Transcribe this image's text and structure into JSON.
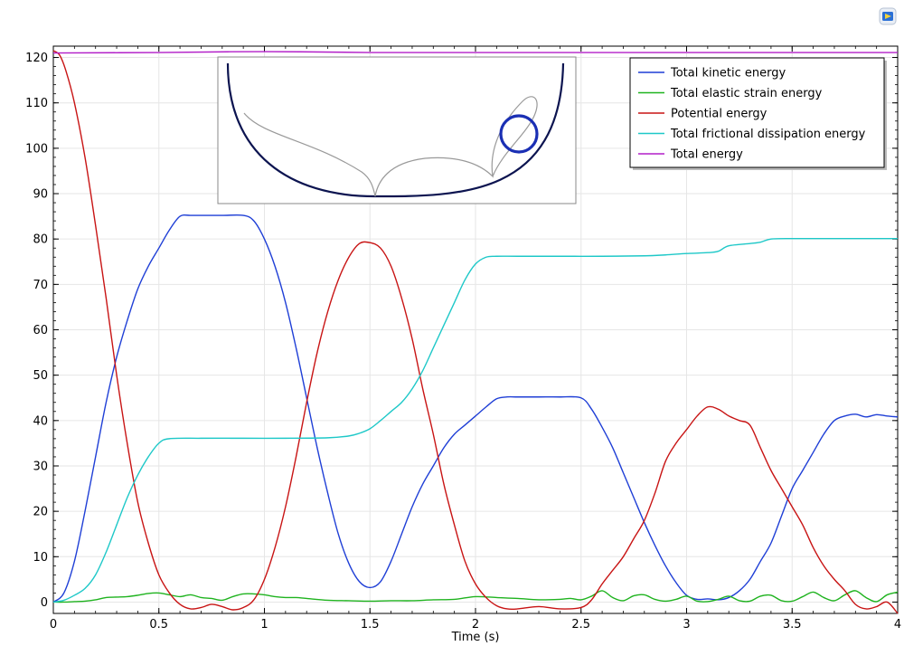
{
  "window": {
    "logo_icon": "comsol-logo-icon"
  },
  "chart_data": {
    "type": "line",
    "xlabel": "Time (s)",
    "ylabel": "",
    "xlim": [
      0,
      4
    ],
    "ylim": [
      -2.5,
      122.5
    ],
    "x_ticks": [
      0,
      0.5,
      1,
      1.5,
      2,
      2.5,
      3,
      3.5,
      4
    ],
    "x_tick_labels": [
      "0",
      "0.5",
      "1",
      "1.5",
      "2",
      "2.5",
      "3",
      "3.5",
      "4"
    ],
    "y_ticks": [
      0,
      10,
      20,
      30,
      40,
      50,
      60,
      70,
      80,
      90,
      100,
      110,
      120
    ],
    "y_tick_labels": [
      "0",
      "10",
      "20",
      "30",
      "40",
      "50",
      "60",
      "70",
      "80",
      "90",
      "100",
      "110",
      "120"
    ],
    "grid": true,
    "legend_position": "top-right",
    "series": [
      {
        "name": "Total kinetic energy",
        "color": "#1f3fd6",
        "x": [
          0,
          0.05,
          0.1,
          0.15,
          0.2,
          0.25,
          0.3,
          0.35,
          0.4,
          0.45,
          0.5,
          0.55,
          0.6,
          0.65,
          0.7,
          0.8,
          0.9,
          0.95,
          1.0,
          1.05,
          1.1,
          1.15,
          1.2,
          1.25,
          1.3,
          1.35,
          1.4,
          1.45,
          1.5,
          1.55,
          1.6,
          1.65,
          1.7,
          1.75,
          1.8,
          1.85,
          1.9,
          1.95,
          2.0,
          2.05,
          2.1,
          2.15,
          2.2,
          2.3,
          2.4,
          2.5,
          2.55,
          2.6,
          2.65,
          2.7,
          2.75,
          2.8,
          2.85,
          2.9,
          2.95,
          3.0,
          3.05,
          3.1,
          3.15,
          3.2,
          3.25,
          3.3,
          3.35,
          3.4,
          3.45,
          3.5,
          3.55,
          3.6,
          3.65,
          3.7,
          3.75,
          3.8,
          3.85,
          3.9,
          3.95,
          4.0
        ],
        "y": [
          0,
          2,
          9,
          20,
          32,
          44,
          54,
          62,
          69,
          74,
          78,
          82,
          85,
          85.2,
          85.2,
          85.2,
          85.2,
          84,
          80,
          74,
          66,
          56,
          45,
          34,
          24,
          15,
          8.5,
          4.5,
          3.2,
          4.5,
          9,
          15,
          21,
          26,
          30,
          34,
          37,
          39,
          41,
          43,
          44.8,
          45.2,
          45.2,
          45.2,
          45.2,
          45.0,
          42.5,
          38.5,
          34,
          28.5,
          23,
          17.5,
          12.5,
          8,
          4.3,
          1.5,
          0.6,
          0.7,
          0.5,
          1,
          2.5,
          5,
          9,
          13,
          19,
          25,
          29,
          33,
          37,
          40,
          41,
          41.4,
          40.8,
          41.3,
          41.0,
          40.8
        ]
      },
      {
        "name": "Total elastic strain energy",
        "color": "#1fb31f",
        "x": [
          0,
          0.05,
          0.1,
          0.15,
          0.2,
          0.25,
          0.3,
          0.35,
          0.4,
          0.45,
          0.5,
          0.55,
          0.6,
          0.65,
          0.7,
          0.75,
          0.8,
          0.85,
          0.9,
          0.95,
          1.0,
          1.05,
          1.1,
          1.15,
          1.2,
          1.3,
          1.4,
          1.5,
          1.6,
          1.7,
          1.8,
          1.9,
          2.0,
          2.1,
          2.2,
          2.3,
          2.4,
          2.45,
          2.5,
          2.55,
          2.6,
          2.65,
          2.7,
          2.75,
          2.8,
          2.85,
          2.9,
          2.95,
          3.0,
          3.05,
          3.1,
          3.15,
          3.2,
          3.25,
          3.3,
          3.35,
          3.4,
          3.45,
          3.5,
          3.55,
          3.6,
          3.65,
          3.7,
          3.75,
          3.8,
          3.85,
          3.9,
          3.95,
          4.0
        ],
        "y": [
          0,
          0,
          0.1,
          0.2,
          0.5,
          1.0,
          1.1,
          1.2,
          1.5,
          1.9,
          2.0,
          1.6,
          1.2,
          1.6,
          1.0,
          0.8,
          0.4,
          1.2,
          1.8,
          1.8,
          1.6,
          1.2,
          1.0,
          1.0,
          0.8,
          0.4,
          0.3,
          0.2,
          0.3,
          0.3,
          0.5,
          0.6,
          1.2,
          1.0,
          0.8,
          0.5,
          0.6,
          0.8,
          0.5,
          1.3,
          2.5,
          1.0,
          0.3,
          1.4,
          1.6,
          0.6,
          0.2,
          0.6,
          1.3,
          0.2,
          0.1,
          0.6,
          1.3,
          0.3,
          0.2,
          1.3,
          1.5,
          0.3,
          0.2,
          1.2,
          2.2,
          1.0,
          0.3,
          1.6,
          2.5,
          1.0,
          0.1,
          1.6,
          2.2
        ]
      },
      {
        "name": "Potential energy",
        "color": "#c81414",
        "x": [
          0,
          0.03,
          0.06,
          0.1,
          0.15,
          0.2,
          0.25,
          0.3,
          0.35,
          0.4,
          0.45,
          0.5,
          0.55,
          0.6,
          0.65,
          0.7,
          0.75,
          0.8,
          0.85,
          0.9,
          0.95,
          1.0,
          1.05,
          1.1,
          1.15,
          1.2,
          1.25,
          1.3,
          1.35,
          1.4,
          1.45,
          1.5,
          1.55,
          1.6,
          1.65,
          1.7,
          1.75,
          1.8,
          1.85,
          1.9,
          1.95,
          2.0,
          2.05,
          2.1,
          2.15,
          2.2,
          2.3,
          2.4,
          2.5,
          2.55,
          2.6,
          2.65,
          2.7,
          2.75,
          2.8,
          2.85,
          2.9,
          2.95,
          3.0,
          3.05,
          3.1,
          3.15,
          3.2,
          3.25,
          3.3,
          3.35,
          3.4,
          3.45,
          3.5,
          3.55,
          3.6,
          3.65,
          3.7,
          3.75,
          3.8,
          3.85,
          3.9,
          3.95,
          4.0
        ],
        "y": [
          121.5,
          120.5,
          117,
          110,
          98,
          83,
          67,
          50,
          35,
          22,
          13,
          6,
          2,
          -0.5,
          -1.5,
          -1.2,
          -0.5,
          -1.0,
          -1.7,
          -1.2,
          0.5,
          5,
          12,
          21,
          32,
          44,
          55,
          64,
          71,
          76,
          79,
          79.2,
          78,
          74,
          67,
          58,
          47,
          37,
          26,
          17,
          9,
          4,
          1,
          -0.8,
          -1.5,
          -1.5,
          -1.0,
          -1.5,
          -1.2,
          0.5,
          4,
          7,
          10,
          14,
          18,
          24,
          31,
          35,
          38,
          41,
          43,
          42.5,
          41,
          40,
          39,
          34,
          29,
          25,
          21,
          17,
          12,
          8,
          5,
          2.5,
          -0.5,
          -1.5,
          -1.0,
          0.0,
          -2.5
        ]
      },
      {
        "name": "Total frictional dissipation energy",
        "color": "#1ec8c8",
        "x": [
          0,
          0.05,
          0.1,
          0.15,
          0.2,
          0.25,
          0.3,
          0.35,
          0.4,
          0.45,
          0.5,
          0.55,
          0.7,
          0.9,
          1.1,
          1.3,
          1.4,
          1.45,
          1.5,
          1.55,
          1.6,
          1.65,
          1.7,
          1.75,
          1.8,
          1.85,
          1.9,
          1.95,
          2.0,
          2.05,
          2.1,
          2.2,
          2.4,
          2.6,
          2.8,
          2.9,
          3.0,
          3.1,
          3.15,
          3.2,
          3.3,
          3.35,
          3.4,
          3.5,
          3.6,
          3.7,
          3.8,
          3.9,
          4.0
        ],
        "y": [
          0,
          0.4,
          1.5,
          3,
          6,
          11,
          17,
          23,
          28,
          32,
          35,
          36,
          36.1,
          36.1,
          36.1,
          36.2,
          36.6,
          37.2,
          38.2,
          40,
          42,
          44,
          47,
          51,
          56,
          61,
          66,
          71,
          74.5,
          76,
          76.2,
          76.2,
          76.2,
          76.2,
          76.3,
          76.5,
          76.8,
          77.0,
          77.3,
          78.5,
          79.0,
          79.3,
          80.0,
          80.1,
          80.1,
          80.1,
          80.1,
          80.1,
          80.1
        ]
      },
      {
        "name": "Total energy",
        "color": "#b21ec8",
        "x": [
          0,
          0.5,
          1,
          1.5,
          2,
          2.5,
          3,
          3.5,
          4
        ],
        "y": [
          121.0,
          121.1,
          121.3,
          121.1,
          121.1,
          121.1,
          121.1,
          121.1,
          121.1
        ]
      }
    ]
  }
}
